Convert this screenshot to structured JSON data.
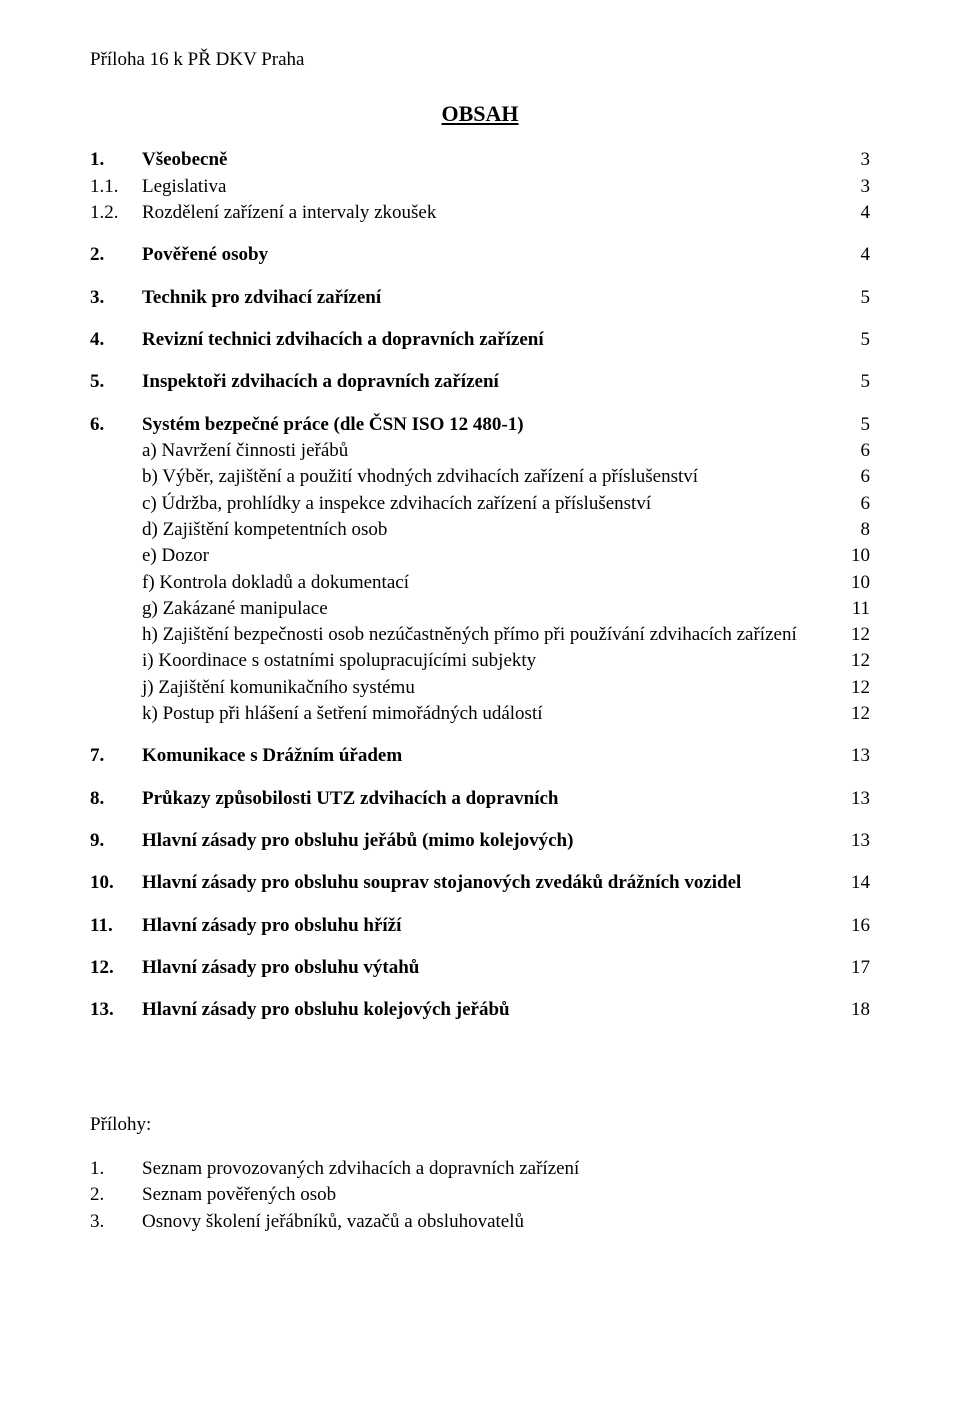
{
  "header": "Příloha 16 k PŘ DKV Praha",
  "title": "OBSAH",
  "toc": [
    {
      "num": "1.",
      "label": "Všeobecně",
      "page": "3",
      "bold": true
    },
    {
      "num": "1.1.",
      "label": "Legislativa",
      "page": "3",
      "bold": false,
      "tight": true
    },
    {
      "num": "1.2.",
      "label": "Rozdělení zařízení a intervaly zkoušek",
      "page": "4",
      "bold": false,
      "tight": true
    },
    {
      "num": "2.",
      "label": "Pověřené osoby",
      "page": "4",
      "bold": true,
      "gap": true
    },
    {
      "num": "3.",
      "label": "Technik pro zdvihací zařízení",
      "page": "5",
      "bold": true,
      "gap": true
    },
    {
      "num": "4.",
      "label": "Revizní technici zdvihacích a dopravních zařízení",
      "page": "5",
      "bold": true,
      "gap": true
    },
    {
      "num": "5.",
      "label": "Inspektoři zdvihacích a dopravních zařízení",
      "page": "5",
      "bold": true,
      "gap": true
    },
    {
      "num": "6.",
      "label": "Systém bezpečné práce (dle ČSN ISO 12 480-1)",
      "page": "5",
      "bold": true,
      "gap": true,
      "subs": [
        {
          "label": "a) Navržení činnosti jeřábů",
          "page": "6"
        },
        {
          "label": "b) Výběr, zajištění a použití vhodných zdvihacích zařízení a příslušenství",
          "page": "6"
        },
        {
          "label": "c) Údržba, prohlídky a inspekce zdvihacích zařízení a příslušenství",
          "page": "6"
        },
        {
          "label": "d) Zajištění kompetentních osob",
          "page": "8"
        },
        {
          "label": "e) Dozor",
          "page": "10"
        },
        {
          "label": "f) Kontrola dokladů a dokumentací",
          "page": "10"
        },
        {
          "label": "g) Zakázané manipulace",
          "page": "11"
        },
        {
          "label": "h) Zajištění bezpečnosti osob nezúčastněných přímo při používání zdvihacích zařízení",
          "page": "12"
        },
        {
          "label": "i) Koordinace s ostatními spolupracujícími subjekty",
          "page": "12"
        },
        {
          "label": "j) Zajištění komunikačního systému",
          "page": "12"
        },
        {
          "label": "k) Postup při hlášení a šetření mimořádných událostí",
          "page": "12"
        }
      ]
    },
    {
      "num": "7.",
      "label": "Komunikace s Drážním úřadem",
      "page": "13",
      "bold": true,
      "gap": true
    },
    {
      "num": "8.",
      "label": "Průkazy způsobilosti UTZ zdvihacích a dopravních",
      "page": "13",
      "bold": true,
      "gap": true
    },
    {
      "num": "9.",
      "label": "Hlavní zásady pro obsluhu jeřábů (mimo kolejových)",
      "page": "13",
      "bold": true,
      "gap": true
    },
    {
      "num": "10.",
      "label": "Hlavní zásady pro obsluhu souprav stojanových zvedáků drážních vozidel",
      "page": "14",
      "bold": true,
      "gap": true
    },
    {
      "num": "11.",
      "label": "Hlavní zásady pro obsluhu hříží",
      "page": "16",
      "bold": true,
      "gap": true
    },
    {
      "num": "12.",
      "label": "Hlavní zásady pro obsluhu výtahů",
      "page": "17",
      "bold": true,
      "gap": true
    },
    {
      "num": "13.",
      "label": "Hlavní zásady pro obsluhu kolejových jeřábů",
      "page": "18",
      "bold": true,
      "gap": true
    }
  ],
  "appendix": {
    "title": "Přílohy:",
    "items": [
      {
        "num": "1.",
        "label": "Seznam provozovaných zdvihacích a dopravních zařízení"
      },
      {
        "num": "2.",
        "label": "Seznam pověřených osob"
      },
      {
        "num": "3.",
        "label": "Osnovy školení jeřábníků, vazačů a obsluhovatelů"
      }
    ]
  }
}
